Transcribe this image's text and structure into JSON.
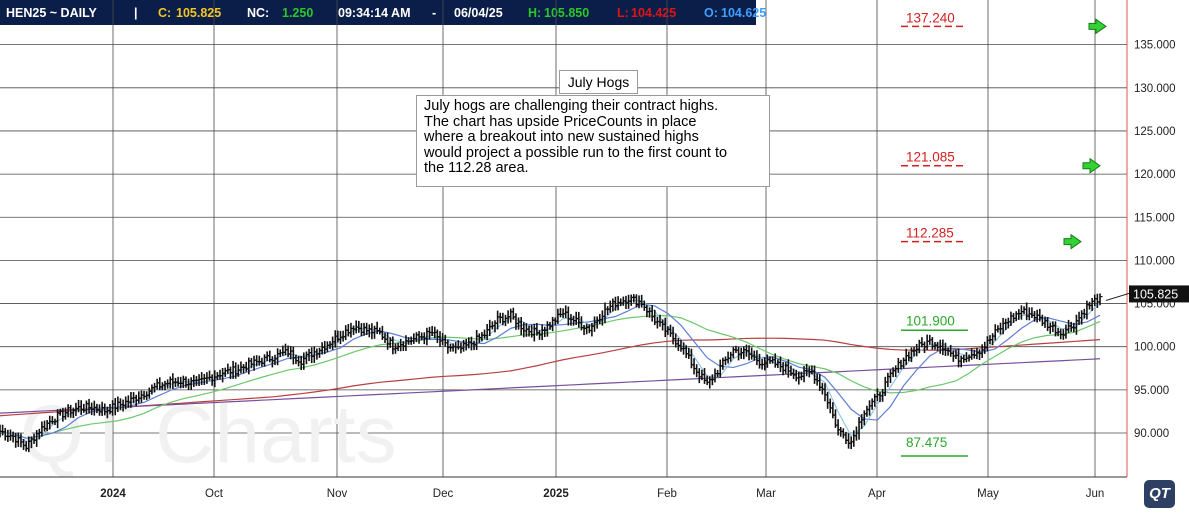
{
  "header": {
    "symbol": "HEN25 ~ DAILY",
    "separator": "|",
    "close_label": "C:",
    "close_value": "105.825",
    "netchange_label": "NC:",
    "netchange_value": "1.250",
    "time": "09:34:14 AM",
    "dash": "-",
    "date": "06/04/25",
    "high_label": "H:",
    "high_value": "105.850",
    "low_label": "L:",
    "low_value": "104.425",
    "open_label": "O:",
    "open_value": "104.625",
    "colors": {
      "background": "#0b1e4a",
      "close": "#f3c623",
      "netchange": "#28c828",
      "high": "#28c828",
      "low": "#e11414",
      "open": "#3ea0ff"
    }
  },
  "annotation": {
    "title": "July Hogs",
    "body": "July hogs are challenging their contract highs.\nThe chart has upside PriceCounts in place\nwhere a breakout into new sustained highs\nwould project a possible run to the first count to\nthe 112.28 area."
  },
  "watermark": "QT Charts",
  "logo_text": "QT",
  "chart_data": {
    "type": "ohlc-bar",
    "price_axis_ticks": [
      "90.000",
      "95.000",
      "100.000",
      "105.000",
      "110.000",
      "115.000",
      "120.000",
      "125.000",
      "130.000",
      "135.000"
    ],
    "ylim": [
      86.0,
      140.0
    ],
    "last_price_label": "105.825",
    "last_price": 105.825,
    "x_axis_labels": [
      "2024",
      "Oct",
      "Nov",
      "Dec",
      "2025",
      "Feb",
      "Mar",
      "Apr",
      "May",
      "Jun"
    ],
    "grid": true,
    "price_counts": [
      {
        "label": "137.240",
        "value": 137.24,
        "color": "#d42020"
      },
      {
        "label": "121.085",
        "value": 121.085,
        "color": "#d42020"
      },
      {
        "label": "112.285",
        "value": 112.285,
        "color": "#d42020"
      }
    ],
    "swing_levels": [
      {
        "label": "101.900",
        "value": 101.9,
        "color": "#2aa82a"
      },
      {
        "label": "87.475",
        "value": 87.475,
        "color": "#2aa82a"
      }
    ],
    "closes_by_week": [
      90.2,
      89.6,
      88.4,
      90.3,
      91.6,
      92.4,
      92.9,
      93.0,
      92.6,
      93.2,
      93.8,
      94.6,
      95.4,
      95.9,
      96.0,
      95.7,
      96.4,
      97.0,
      97.3,
      97.9,
      98.4,
      98.9,
      99.4,
      98.4,
      99.4,
      100.3,
      101.4,
      102.4,
      101.9,
      101.6,
      100.1,
      100.6,
      101.1,
      101.6,
      100.1,
      99.6,
      100.4,
      101.4,
      103.1,
      103.6,
      102.1,
      101.6,
      102.6,
      103.9,
      102.9,
      102.1,
      103.9,
      105.1,
      105.6,
      105.1,
      103.1,
      101.6,
      100.1,
      97.6,
      95.6,
      97.6,
      99.6,
      99.3,
      98.3,
      98.1,
      97.5,
      96.6,
      97.1,
      94.6,
      90.3,
      89.0,
      92.6,
      94.1,
      96.6,
      98.6,
      99.9,
      100.6,
      100.1,
      98.6,
      99.1,
      99.7,
      101.6,
      103.1,
      104.1,
      103.6,
      102.6,
      101.6,
      102.6,
      104.6,
      105.8
    ],
    "indicators": [
      {
        "type": "moving-average",
        "color": "#b84040"
      },
      {
        "type": "moving-average",
        "color": "#7a4e9a"
      },
      {
        "type": "moving-average",
        "color": "#6ac86a"
      },
      {
        "type": "moving-average",
        "color": "#5f7fd4"
      },
      {
        "type": "moving-average",
        "color": "#8fc6e8"
      }
    ],
    "arrow_color": "#32d232"
  }
}
